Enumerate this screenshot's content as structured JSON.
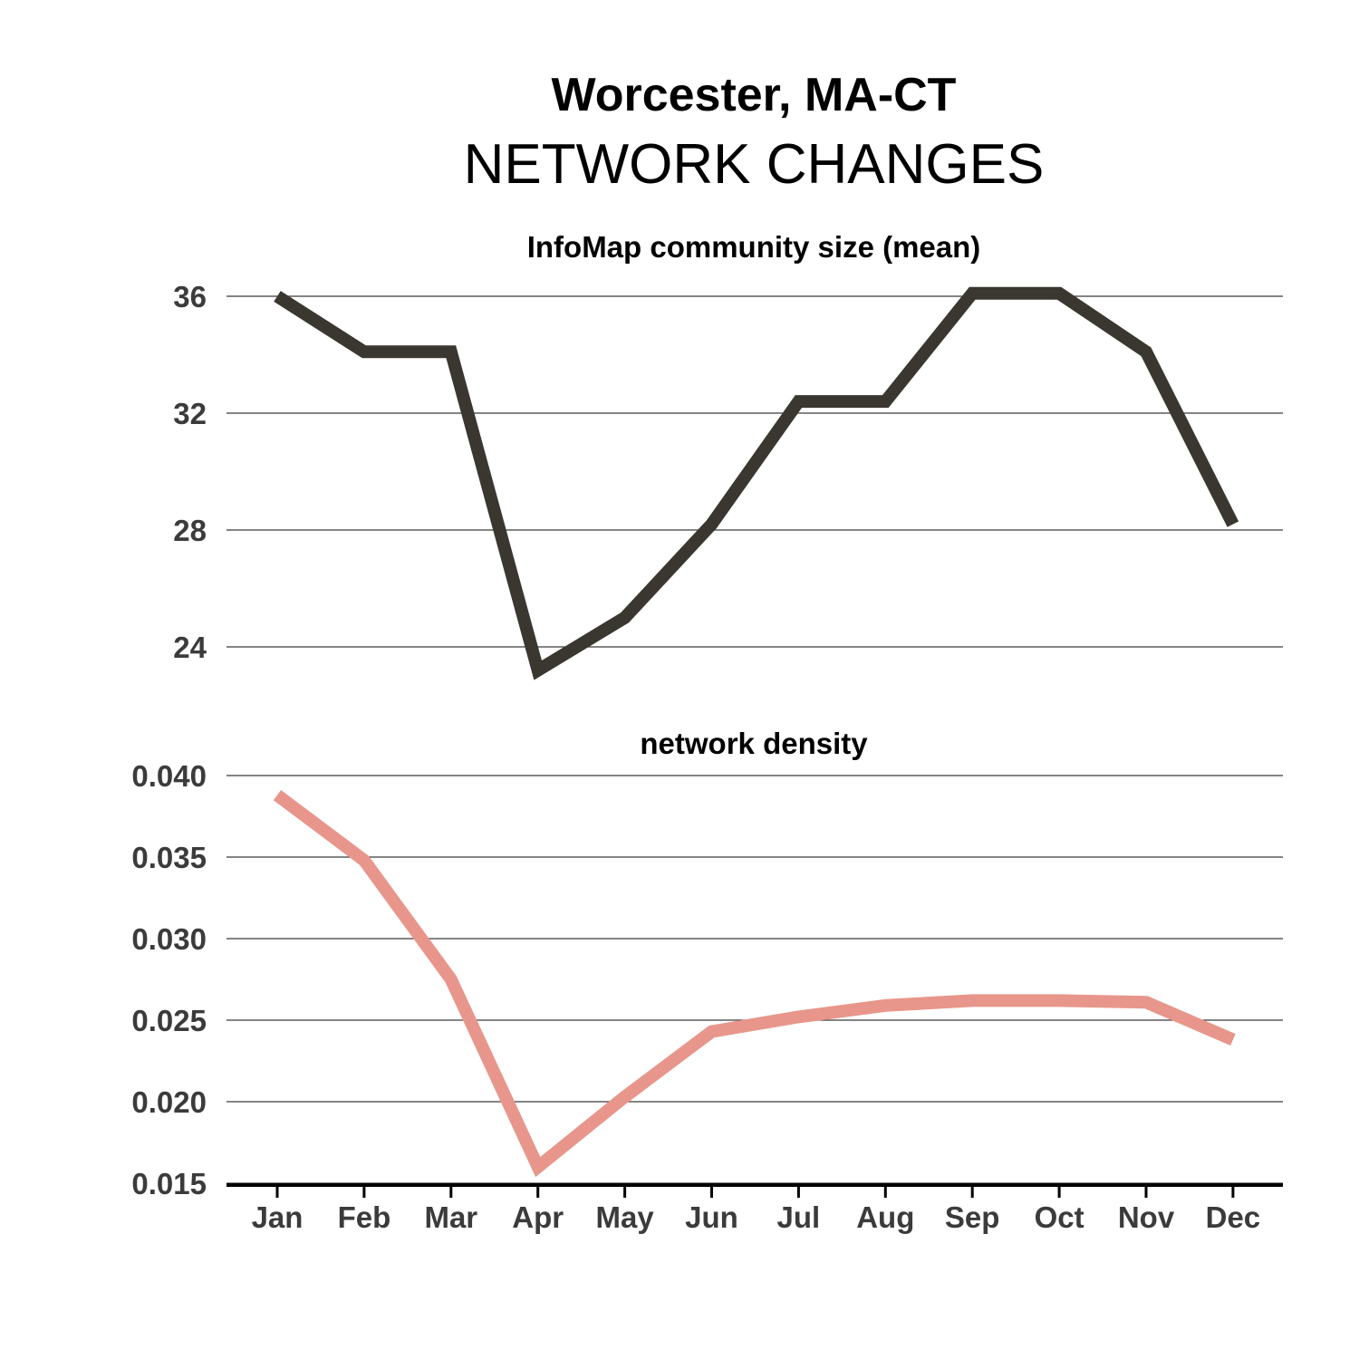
{
  "figure": {
    "title": "Worcester, MA-CT",
    "subtitle": "NETWORK CHANGES"
  },
  "chart_data": [
    {
      "type": "line",
      "title": "InfoMap community size (mean)",
      "xlabel": "",
      "ylabel": "",
      "categories": [
        "Jan",
        "Feb",
        "Mar",
        "Apr",
        "May",
        "Jun",
        "Jul",
        "Aug",
        "Sep",
        "Oct",
        "Nov",
        "Dec"
      ],
      "ticks": [
        "24",
        "28",
        "32",
        "36"
      ],
      "tick_values": [
        24,
        28,
        32,
        36
      ],
      "ylim": [
        23,
        36.2
      ],
      "grid": "horizontal",
      "series": [
        {
          "values": [
            36.0,
            34.1,
            34.1,
            23.2,
            25.0,
            28.2,
            32.4,
            32.4,
            36.1,
            36.1,
            34.1,
            28.2
          ],
          "color": "#3a3731"
        }
      ]
    },
    {
      "type": "line",
      "title": "network density",
      "xlabel": "",
      "ylabel": "",
      "categories": [
        "Jan",
        "Feb",
        "Mar",
        "Apr",
        "May",
        "Jun",
        "Jul",
        "Aug",
        "Sep",
        "Oct",
        "Nov",
        "Dec"
      ],
      "ticks": [
        "0.015",
        "0.020",
        "0.025",
        "0.030",
        "0.035",
        "0.040"
      ],
      "tick_values": [
        0.015,
        0.02,
        0.025,
        0.03,
        0.035,
        0.04
      ],
      "ylim": [
        0.015,
        0.04
      ],
      "grid": "horizontal",
      "series": [
        {
          "values": [
            0.0388,
            0.0348,
            0.0275,
            0.016,
            0.0203,
            0.0243,
            0.0252,
            0.0259,
            0.0262,
            0.0262,
            0.0261,
            0.0238
          ],
          "color": "#e8968b"
        }
      ]
    }
  ]
}
